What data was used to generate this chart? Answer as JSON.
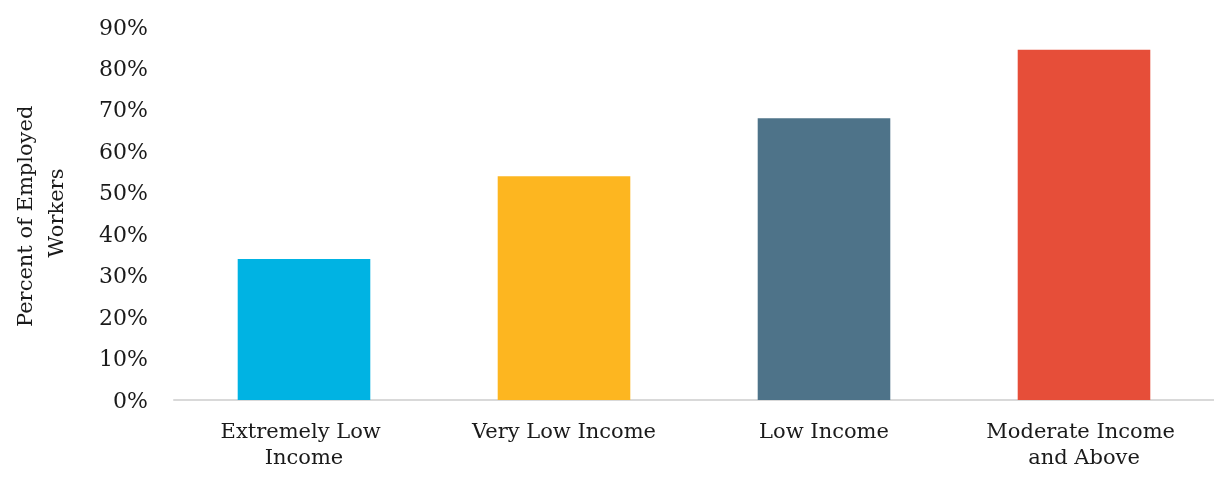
{
  "chart_data": {
    "type": "bar",
    "ylabel": "Percent of Employed Workers",
    "categories": [
      "Extremely Low Income",
      "Very Low Income",
      "Low Income",
      "Moderate Income and Above"
    ],
    "values": [
      34,
      54,
      68,
      84.5
    ],
    "colors": [
      "#00b3e3",
      "#fdb620",
      "#4e7389",
      "#e64e39"
    ],
    "ylim": [
      0,
      90
    ],
    "yticks": [
      {
        "value": 0,
        "label": "0%"
      },
      {
        "value": 10,
        "label": "10%"
      },
      {
        "value": 20,
        "label": "20%"
      },
      {
        "value": 30,
        "label": "30%"
      },
      {
        "value": 40,
        "label": "40%"
      },
      {
        "value": 50,
        "label": "50%"
      },
      {
        "value": 60,
        "label": "60%"
      },
      {
        "value": 70,
        "label": "70%"
      },
      {
        "value": 80,
        "label": "80%"
      },
      {
        "value": 90,
        "label": "90%"
      }
    ],
    "grid": false
  }
}
